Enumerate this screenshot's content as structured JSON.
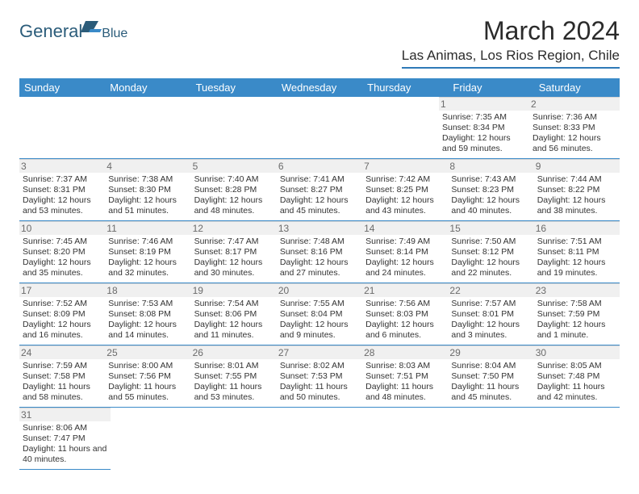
{
  "logo": {
    "general": "General",
    "blue": "Blue"
  },
  "title": "March 2024",
  "location": "Las Animas, Los Rios Region, Chile",
  "colors": {
    "headerBar": "#3a8ac8",
    "headerText": "#ffffff",
    "rowBorder": "#3a8ac8",
    "daynumBg": "#f0f0f0",
    "daynumText": "#6b6b6b",
    "bodyText": "#333333",
    "logoColor": "#2b5c7a"
  },
  "dayHeaders": [
    "Sunday",
    "Monday",
    "Tuesday",
    "Wednesday",
    "Thursday",
    "Friday",
    "Saturday"
  ],
  "weeks": [
    [
      null,
      null,
      null,
      null,
      null,
      {
        "n": "1",
        "sr": "7:35 AM",
        "ss": "8:34 PM",
        "dl": "12 hours and 59 minutes."
      },
      {
        "n": "2",
        "sr": "7:36 AM",
        "ss": "8:33 PM",
        "dl": "12 hours and 56 minutes."
      }
    ],
    [
      {
        "n": "3",
        "sr": "7:37 AM",
        "ss": "8:31 PM",
        "dl": "12 hours and 53 minutes."
      },
      {
        "n": "4",
        "sr": "7:38 AM",
        "ss": "8:30 PM",
        "dl": "12 hours and 51 minutes."
      },
      {
        "n": "5",
        "sr": "7:40 AM",
        "ss": "8:28 PM",
        "dl": "12 hours and 48 minutes."
      },
      {
        "n": "6",
        "sr": "7:41 AM",
        "ss": "8:27 PM",
        "dl": "12 hours and 45 minutes."
      },
      {
        "n": "7",
        "sr": "7:42 AM",
        "ss": "8:25 PM",
        "dl": "12 hours and 43 minutes."
      },
      {
        "n": "8",
        "sr": "7:43 AM",
        "ss": "8:23 PM",
        "dl": "12 hours and 40 minutes."
      },
      {
        "n": "9",
        "sr": "7:44 AM",
        "ss": "8:22 PM",
        "dl": "12 hours and 38 minutes."
      }
    ],
    [
      {
        "n": "10",
        "sr": "7:45 AM",
        "ss": "8:20 PM",
        "dl": "12 hours and 35 minutes."
      },
      {
        "n": "11",
        "sr": "7:46 AM",
        "ss": "8:19 PM",
        "dl": "12 hours and 32 minutes."
      },
      {
        "n": "12",
        "sr": "7:47 AM",
        "ss": "8:17 PM",
        "dl": "12 hours and 30 minutes."
      },
      {
        "n": "13",
        "sr": "7:48 AM",
        "ss": "8:16 PM",
        "dl": "12 hours and 27 minutes."
      },
      {
        "n": "14",
        "sr": "7:49 AM",
        "ss": "8:14 PM",
        "dl": "12 hours and 24 minutes."
      },
      {
        "n": "15",
        "sr": "7:50 AM",
        "ss": "8:12 PM",
        "dl": "12 hours and 22 minutes."
      },
      {
        "n": "16",
        "sr": "7:51 AM",
        "ss": "8:11 PM",
        "dl": "12 hours and 19 minutes."
      }
    ],
    [
      {
        "n": "17",
        "sr": "7:52 AM",
        "ss": "8:09 PM",
        "dl": "12 hours and 16 minutes."
      },
      {
        "n": "18",
        "sr": "7:53 AM",
        "ss": "8:08 PM",
        "dl": "12 hours and 14 minutes."
      },
      {
        "n": "19",
        "sr": "7:54 AM",
        "ss": "8:06 PM",
        "dl": "12 hours and 11 minutes."
      },
      {
        "n": "20",
        "sr": "7:55 AM",
        "ss": "8:04 PM",
        "dl": "12 hours and 9 minutes."
      },
      {
        "n": "21",
        "sr": "7:56 AM",
        "ss": "8:03 PM",
        "dl": "12 hours and 6 minutes."
      },
      {
        "n": "22",
        "sr": "7:57 AM",
        "ss": "8:01 PM",
        "dl": "12 hours and 3 minutes."
      },
      {
        "n": "23",
        "sr": "7:58 AM",
        "ss": "7:59 PM",
        "dl": "12 hours and 1 minute."
      }
    ],
    [
      {
        "n": "24",
        "sr": "7:59 AM",
        "ss": "7:58 PM",
        "dl": "11 hours and 58 minutes."
      },
      {
        "n": "25",
        "sr": "8:00 AM",
        "ss": "7:56 PM",
        "dl": "11 hours and 55 minutes."
      },
      {
        "n": "26",
        "sr": "8:01 AM",
        "ss": "7:55 PM",
        "dl": "11 hours and 53 minutes."
      },
      {
        "n": "27",
        "sr": "8:02 AM",
        "ss": "7:53 PM",
        "dl": "11 hours and 50 minutes."
      },
      {
        "n": "28",
        "sr": "8:03 AM",
        "ss": "7:51 PM",
        "dl": "11 hours and 48 minutes."
      },
      {
        "n": "29",
        "sr": "8:04 AM",
        "ss": "7:50 PM",
        "dl": "11 hours and 45 minutes."
      },
      {
        "n": "30",
        "sr": "8:05 AM",
        "ss": "7:48 PM",
        "dl": "11 hours and 42 minutes."
      }
    ],
    [
      {
        "n": "31",
        "sr": "8:06 AM",
        "ss": "7:47 PM",
        "dl": "11 hours and 40 minutes."
      },
      null,
      null,
      null,
      null,
      null,
      null
    ]
  ],
  "labels": {
    "sunrise": "Sunrise: ",
    "sunset": "Sunset: ",
    "daylight": "Daylight: "
  }
}
